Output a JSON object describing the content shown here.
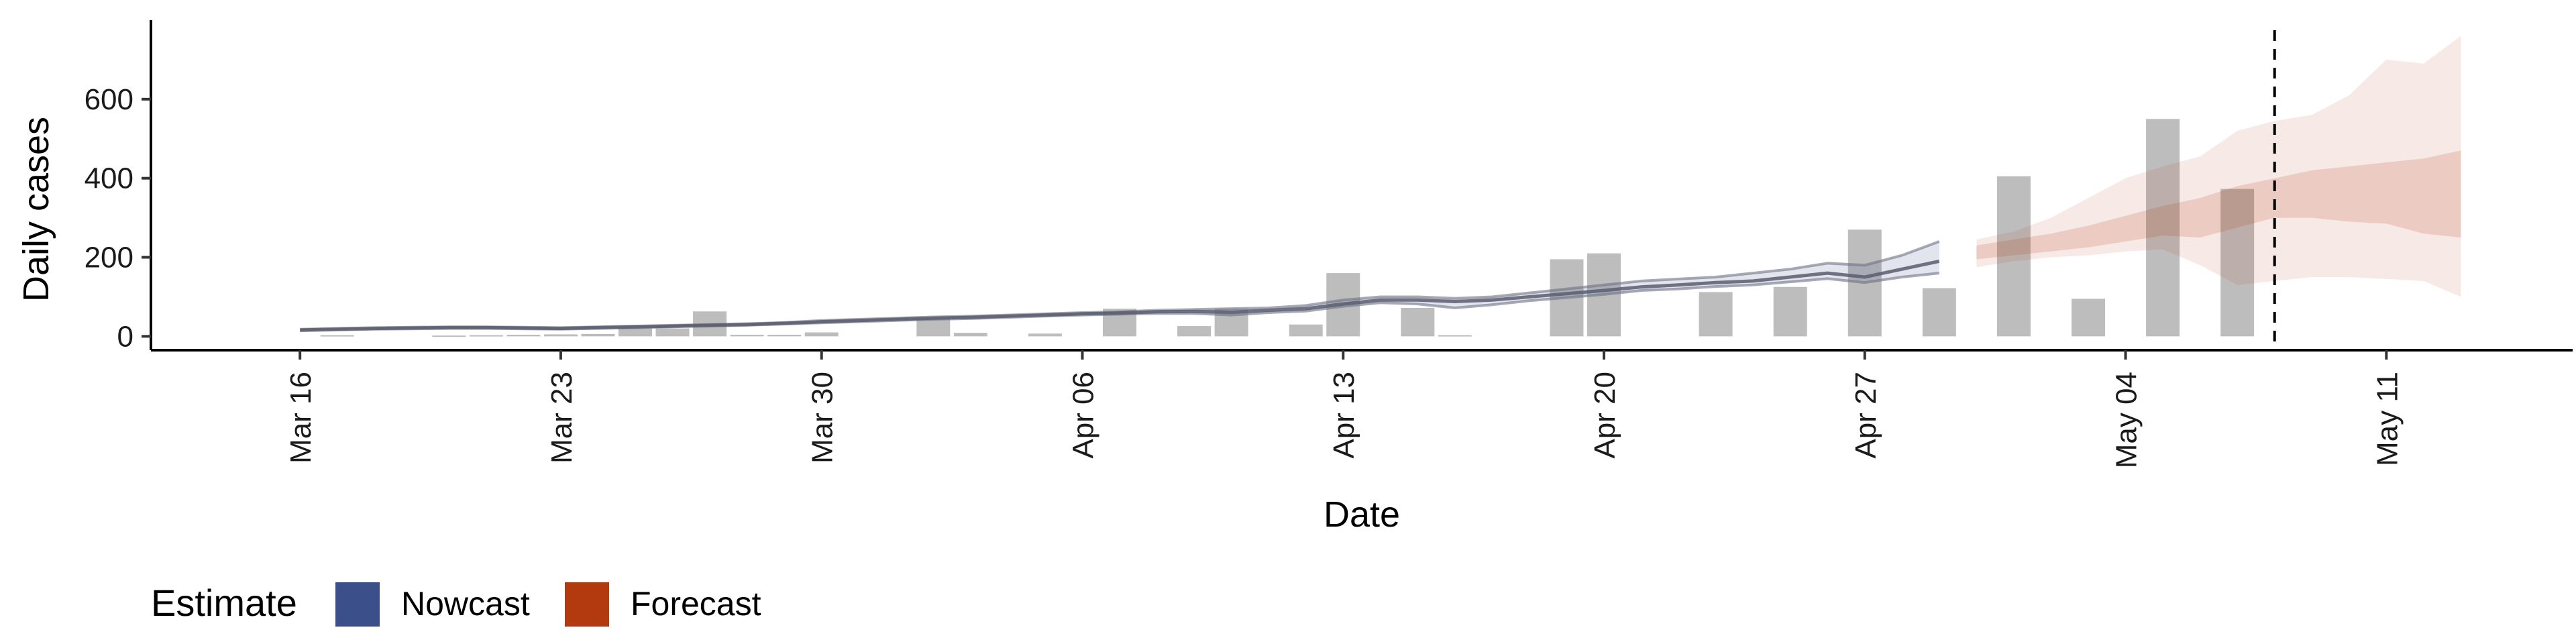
{
  "chart_data": {
    "type": "bar",
    "xlabel": "Date",
    "ylabel": "Daily cases",
    "x_axis": {
      "type": "date",
      "range": [
        "2020-03-12",
        "2020-05-16"
      ],
      "ticks": [
        "2020-03-16",
        "2020-03-23",
        "2020-03-30",
        "2020-04-06",
        "2020-04-13",
        "2020-04-20",
        "2020-04-27",
        "2020-05-04",
        "2020-05-11"
      ],
      "tick_labels": [
        "Mar 16",
        "Mar 23",
        "Mar 30",
        "Apr 06",
        "Apr 13",
        "Apr 20",
        "Apr 27",
        "May 04",
        "May 11"
      ],
      "tick_label_rotation": "vertical"
    },
    "y_axis": {
      "range": [
        -35,
        800
      ],
      "ticks": [
        0,
        200,
        400,
        600
      ],
      "tick_labels": [
        "0",
        "200",
        "400",
        "600"
      ]
    },
    "grid": false,
    "reference_line": {
      "date": "2020-05-08",
      "style": "dashed"
    },
    "bars": {
      "color": "#bdbdbd",
      "points": [
        {
          "date": "2020-03-17",
          "value": 3
        },
        {
          "date": "2020-03-20",
          "value": 2
        },
        {
          "date": "2020-03-21",
          "value": 3
        },
        {
          "date": "2020-03-22",
          "value": 4
        },
        {
          "date": "2020-03-23",
          "value": 5
        },
        {
          "date": "2020-03-24",
          "value": 6
        },
        {
          "date": "2020-03-25",
          "value": 20
        },
        {
          "date": "2020-03-26",
          "value": 20
        },
        {
          "date": "2020-03-27",
          "value": 63
        },
        {
          "date": "2020-03-28",
          "value": 4
        },
        {
          "date": "2020-03-29",
          "value": 4
        },
        {
          "date": "2020-03-30",
          "value": 10
        },
        {
          "date": "2020-04-02",
          "value": 43
        },
        {
          "date": "2020-04-03",
          "value": 9
        },
        {
          "date": "2020-04-05",
          "value": 7
        },
        {
          "date": "2020-04-07",
          "value": 70
        },
        {
          "date": "2020-04-09",
          "value": 26
        },
        {
          "date": "2020-04-10",
          "value": 70
        },
        {
          "date": "2020-04-12",
          "value": 30
        },
        {
          "date": "2020-04-13",
          "value": 160
        },
        {
          "date": "2020-04-15",
          "value": 72
        },
        {
          "date": "2020-04-16",
          "value": 3
        },
        {
          "date": "2020-04-19",
          "value": 195
        },
        {
          "date": "2020-04-20",
          "value": 210
        },
        {
          "date": "2020-04-23",
          "value": 112
        },
        {
          "date": "2020-04-25",
          "value": 125
        },
        {
          "date": "2020-04-27",
          "value": 270
        },
        {
          "date": "2020-04-29",
          "value": 122
        },
        {
          "date": "2020-05-01",
          "value": 405
        },
        {
          "date": "2020-05-03",
          "value": 95
        },
        {
          "date": "2020-05-05",
          "value": 550
        },
        {
          "date": "2020-05-07",
          "value": 373
        }
      ]
    },
    "series": [
      {
        "name": "Nowcast",
        "color": "#3b4f8a",
        "dates": [
          "2020-03-16",
          "2020-03-17",
          "2020-03-18",
          "2020-03-19",
          "2020-03-20",
          "2020-03-21",
          "2020-03-22",
          "2020-03-23",
          "2020-03-24",
          "2020-03-25",
          "2020-03-26",
          "2020-03-27",
          "2020-03-28",
          "2020-03-29",
          "2020-03-30",
          "2020-03-31",
          "2020-04-01",
          "2020-04-02",
          "2020-04-03",
          "2020-04-04",
          "2020-04-05",
          "2020-04-06",
          "2020-04-07",
          "2020-04-08",
          "2020-04-09",
          "2020-04-10",
          "2020-04-11",
          "2020-04-12",
          "2020-04-13",
          "2020-04-14",
          "2020-04-15",
          "2020-04-16",
          "2020-04-17",
          "2020-04-18",
          "2020-04-19",
          "2020-04-20",
          "2020-04-21",
          "2020-04-22",
          "2020-04-23",
          "2020-04-24",
          "2020-04-25",
          "2020-04-26",
          "2020-04-27",
          "2020-04-28",
          "2020-04-29"
        ],
        "median": [
          16,
          18,
          20,
          21,
          22,
          22,
          21,
          20,
          22,
          24,
          26,
          28,
          30,
          33,
          37,
          40,
          43,
          46,
          48,
          51,
          54,
          57,
          59,
          62,
          63,
          61,
          66,
          70,
          82,
          92,
          92,
          88,
          92,
          100,
          108,
          116,
          125,
          130,
          136,
          140,
          150,
          160,
          150,
          170,
          190
        ],
        "lower": [
          14,
          16,
          18,
          19,
          20,
          20,
          19,
          18,
          20,
          22,
          24,
          26,
          28,
          31,
          34,
          37,
          40,
          43,
          45,
          48,
          51,
          54,
          56,
          58,
          58,
          54,
          60,
          64,
          76,
          85,
          82,
          72,
          80,
          90,
          98,
          106,
          116,
          120,
          126,
          130,
          138,
          146,
          136,
          150,
          160
        ],
        "upper": [
          18,
          20,
          22,
          23,
          24,
          24,
          23,
          22,
          24,
          26,
          28,
          30,
          32,
          35,
          40,
          43,
          46,
          49,
          51,
          54,
          57,
          60,
          62,
          66,
          68,
          70,
          72,
          78,
          92,
          100,
          100,
          96,
          100,
          110,
          120,
          130,
          140,
          145,
          150,
          160,
          170,
          185,
          180,
          205,
          240
        ]
      },
      {
        "name": "Forecast",
        "color": "#b33a0e",
        "dates": [
          "2020-04-30",
          "2020-05-01",
          "2020-05-02",
          "2020-05-03",
          "2020-05-04",
          "2020-05-05",
          "2020-05-06",
          "2020-05-07",
          "2020-05-08",
          "2020-05-09",
          "2020-05-10",
          "2020-05-11",
          "2020-05-12",
          "2020-05-13"
        ],
        "median": [
          210,
          225,
          240,
          260,
          285,
          300,
          310,
          330,
          345,
          360,
          375,
          385,
          400,
          400
        ],
        "inner_lower": [
          195,
          205,
          215,
          225,
          240,
          255,
          250,
          275,
          300,
          300,
          290,
          285,
          260,
          250
        ],
        "inner_upper": [
          230,
          245,
          260,
          280,
          305,
          330,
          350,
          380,
          400,
          420,
          430,
          440,
          450,
          470
        ],
        "outer_lower": [
          175,
          190,
          200,
          205,
          215,
          220,
          180,
          130,
          140,
          150,
          150,
          145,
          140,
          100
        ],
        "outer_upper": [
          245,
          265,
          300,
          350,
          400,
          430,
          455,
          520,
          545,
          560,
          610,
          700,
          690,
          760
        ]
      }
    ],
    "legend": {
      "title": "Estimate",
      "position": "bottom-left",
      "entries": [
        {
          "label": "Nowcast",
          "color": "#3b4f8a"
        },
        {
          "label": "Forecast",
          "color": "#b33a0e"
        }
      ]
    }
  }
}
